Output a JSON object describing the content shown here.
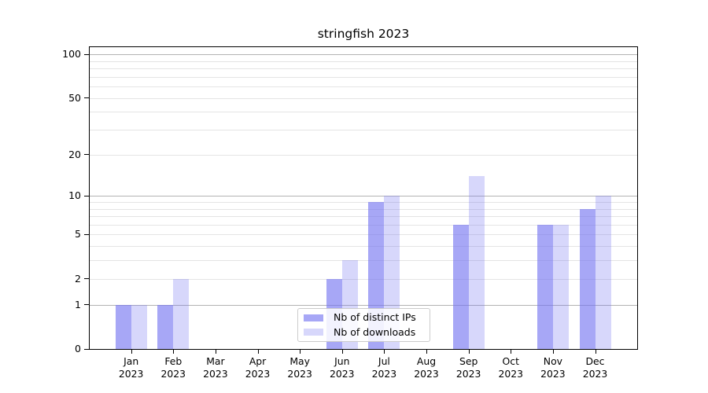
{
  "title": "stringfish 2023",
  "legend": {
    "items": [
      {
        "label": "Nb of distinct IPs",
        "series": "ips"
      },
      {
        "label": "Nb of downloads",
        "series": "downloads"
      }
    ]
  },
  "y_axis": {
    "ticks": [
      {
        "value": 0,
        "label": "0"
      },
      {
        "value": 1,
        "label": "1"
      },
      {
        "value": 2,
        "label": "2"
      },
      {
        "value": 5,
        "label": "5"
      },
      {
        "value": 10,
        "label": "10"
      },
      {
        "value": 20,
        "label": "20"
      },
      {
        "value": 50,
        "label": "50"
      },
      {
        "value": 100,
        "label": "100"
      }
    ]
  },
  "x_axis": {
    "labels": [
      {
        "month": "Jan",
        "year": "2023"
      },
      {
        "month": "Feb",
        "year": "2023"
      },
      {
        "month": "Mar",
        "year": "2023"
      },
      {
        "month": "Apr",
        "year": "2023"
      },
      {
        "month": "May",
        "year": "2023"
      },
      {
        "month": "Jun",
        "year": "2023"
      },
      {
        "month": "Jul",
        "year": "2023"
      },
      {
        "month": "Aug",
        "year": "2023"
      },
      {
        "month": "Sep",
        "year": "2023"
      },
      {
        "month": "Oct",
        "year": "2023"
      },
      {
        "month": "Nov",
        "year": "2023"
      },
      {
        "month": "Dec",
        "year": "2023"
      }
    ]
  },
  "colors": {
    "bar_base_rgb": "113,113,240",
    "ips_alpha": 0.62,
    "downloads_alpha": 0.28,
    "grid_major": "#b3b3b3",
    "grid_minor": "#e4e4e4",
    "spine": "#000000",
    "legend_border": "#cccccc"
  },
  "chart_data": {
    "type": "bar",
    "title": "stringfish 2023",
    "categories": [
      "Jan 2023",
      "Feb 2023",
      "Mar 2023",
      "Apr 2023",
      "May 2023",
      "Jun 2023",
      "Jul 2023",
      "Aug 2023",
      "Sep 2023",
      "Oct 2023",
      "Nov 2023",
      "Dec 2023"
    ],
    "series": [
      {
        "name": "Nb of distinct IPs",
        "values": [
          1,
          1,
          0,
          0,
          0,
          2,
          9,
          0,
          6,
          0,
          6,
          8
        ]
      },
      {
        "name": "Nb of downloads",
        "values": [
          1,
          2,
          0,
          0,
          0,
          3,
          10,
          0,
          14,
          0,
          6,
          10
        ]
      }
    ],
    "yscale": "log1p",
    "ylim": [
      0,
      112
    ],
    "y_ticks": [
      0,
      1,
      2,
      5,
      10,
      20,
      50,
      100
    ],
    "y_minor_gridlines": [
      3,
      4,
      6,
      7,
      8,
      9,
      30,
      40,
      60,
      70,
      80,
      90
    ],
    "xlabel": "",
    "ylabel": "",
    "grid": true,
    "legend_position": "lower center"
  }
}
